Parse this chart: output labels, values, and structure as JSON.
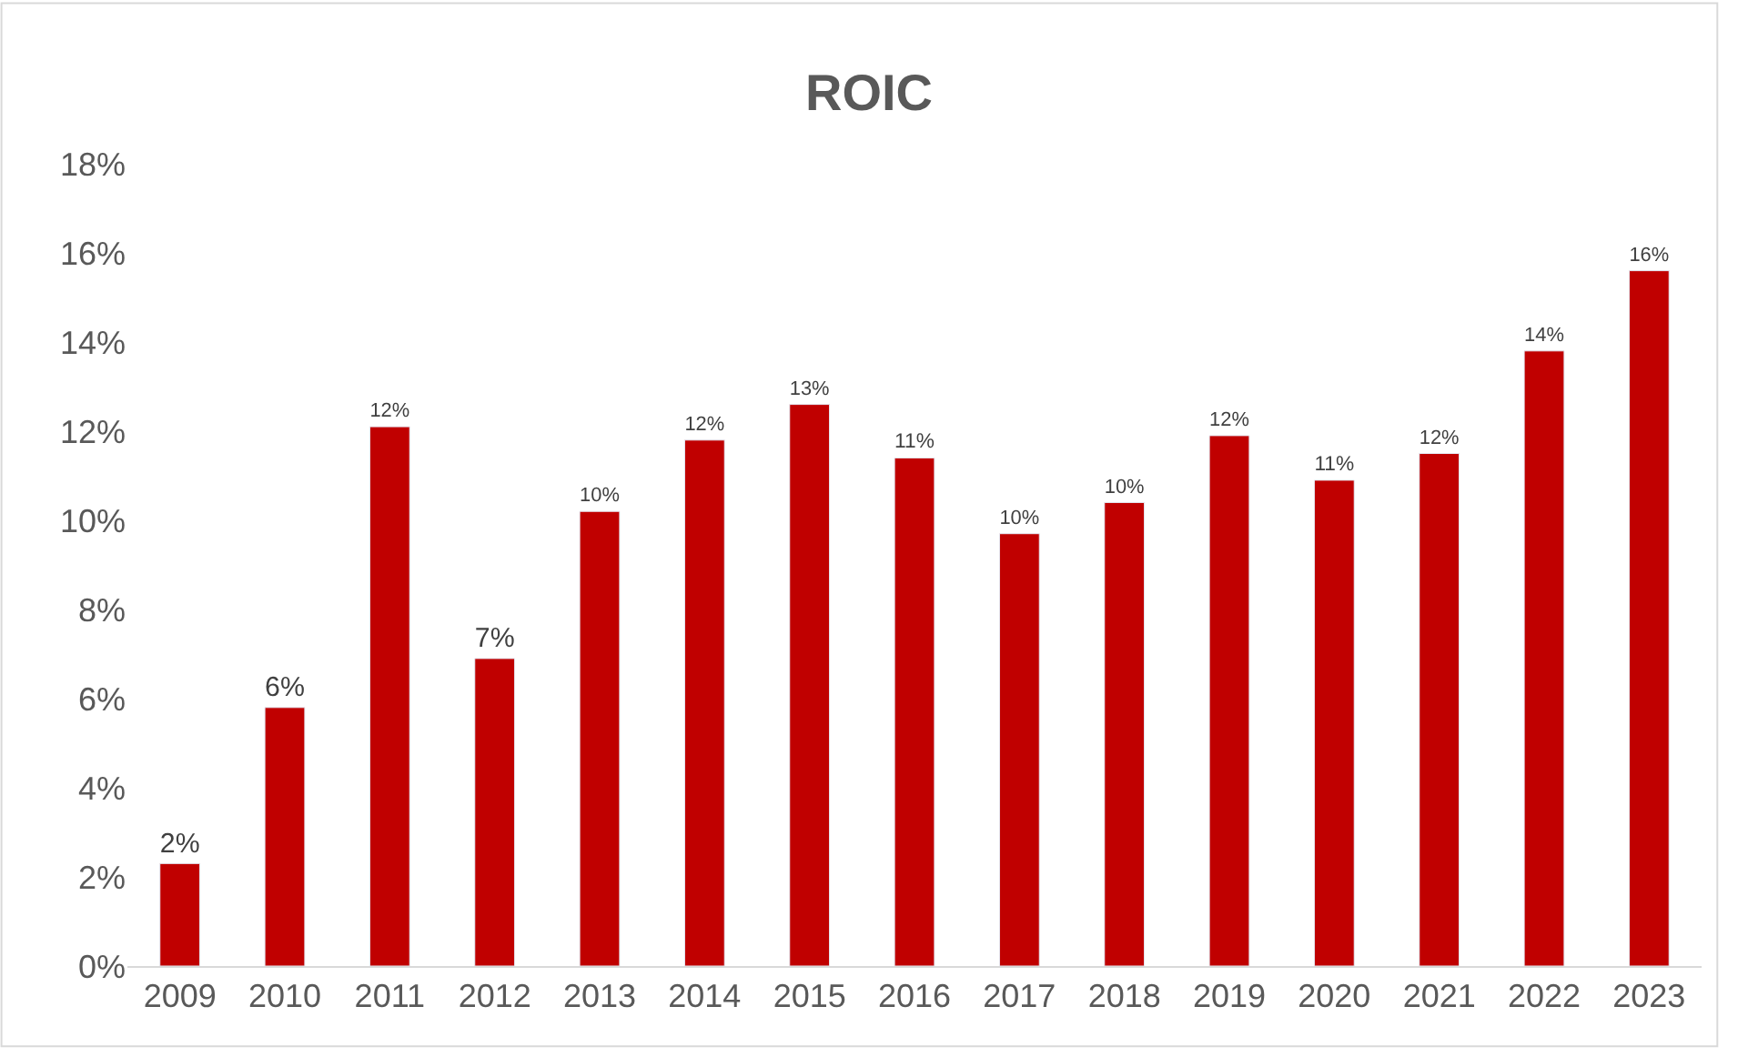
{
  "chart_data": {
    "type": "bar",
    "title": "ROIC",
    "categories": [
      "2009",
      "2010",
      "2011",
      "2012",
      "2013",
      "2014",
      "2015",
      "2016",
      "2017",
      "2018",
      "2019",
      "2020",
      "2021",
      "2022",
      "2023"
    ],
    "values": [
      2.3,
      5.8,
      12.1,
      6.9,
      10.2,
      11.8,
      12.6,
      11.4,
      9.7,
      10.4,
      11.9,
      10.9,
      11.5,
      13.8,
      15.6
    ],
    "value_labels": [
      "2%",
      "6%",
      "12%",
      "7%",
      "10%",
      "12%",
      "13%",
      "11%",
      "10%",
      "10%",
      "12%",
      "11%",
      "12%",
      "14%",
      "16%"
    ],
    "color": "#c00000",
    "ylim": [
      0,
      18
    ],
    "yticks": [
      {
        "value": 0,
        "label": "0%"
      },
      {
        "value": 2,
        "label": "2%"
      },
      {
        "value": 4,
        "label": "4%"
      },
      {
        "value": 6,
        "label": "6%"
      },
      {
        "value": 8,
        "label": "8%"
      },
      {
        "value": 10,
        "label": "10%"
      },
      {
        "value": 12,
        "label": "12%"
      },
      {
        "value": 14,
        "label": "14%"
      },
      {
        "value": 16,
        "label": "16%"
      },
      {
        "value": 18,
        "label": "18%"
      }
    ],
    "grid": false,
    "legend": false
  }
}
